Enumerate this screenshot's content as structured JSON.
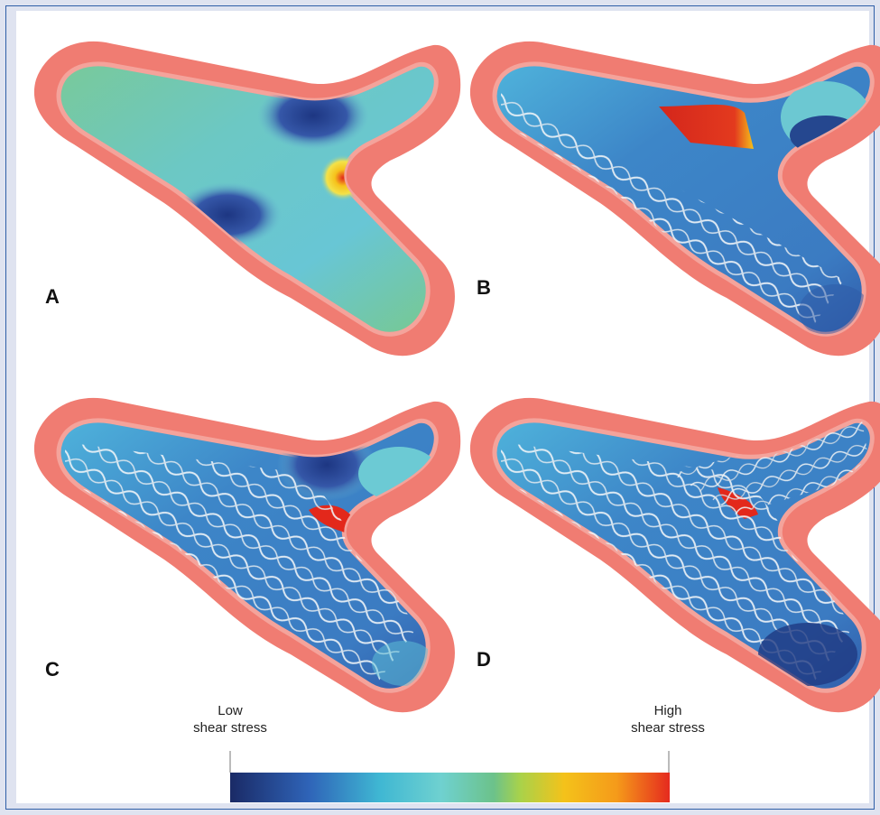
{
  "panels": [
    {
      "label": "A",
      "description_name": "panel-a"
    },
    {
      "label": "B",
      "description_name": "panel-b"
    },
    {
      "label": "C",
      "description_name": "panel-c"
    },
    {
      "label": "D",
      "description_name": "panel-d"
    }
  ],
  "legend": {
    "low_line1": "Low",
    "low_line2": "shear stress",
    "high_line1": "High",
    "high_line2": "shear stress",
    "colors": [
      "#1a2a66",
      "#2f64b8",
      "#3fb7d3",
      "#6fd1d0",
      "#6cc28a",
      "#a9d24a",
      "#f4c21a",
      "#f59a1a",
      "#e52a1e"
    ]
  },
  "colors": {
    "wall_outer": "#f07c72",
    "wall_inner": "#f7a09a",
    "lumen_green": "#76c79a",
    "lumen_cyan": "#66c7d6",
    "lumen_blue": "#3a7fc6",
    "low_zone": "#1d3a86",
    "high_zone": "#e3281b"
  }
}
